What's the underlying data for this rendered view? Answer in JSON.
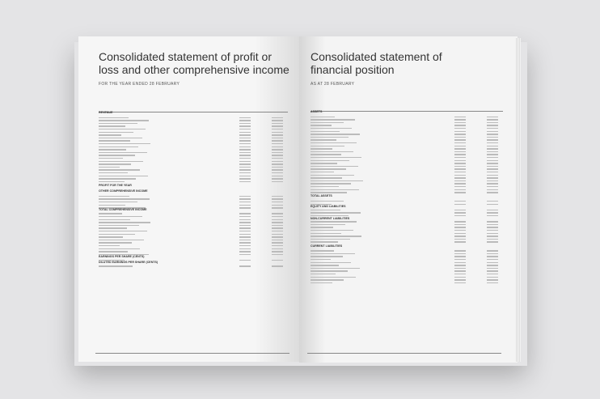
{
  "left_page": {
    "title": "Consolidated statement of profit or loss and other comprehensive income",
    "subtitle": "FOR THE YEAR ENDED 28 FEBRUARY",
    "rows": [
      {
        "label": "REVENUE",
        "top": 137
      },
      {
        "label": "PROFIT FOR THE YEAR",
        "top": 227
      },
      {
        "label": "OTHER COMPREHENSIVE INCOME",
        "top": 234
      },
      {
        "label": "TOTAL COMPREHENSIVE INCOME",
        "top": 257
      },
      {
        "label": "EARNINGS PER SHARE (CENTS)",
        "top": 315
      },
      {
        "label": "DILUTED EARNINGS PER SHARE (CENTS)",
        "top": 322
      }
    ]
  },
  "right_page": {
    "title": "Consolidated statement of financial position",
    "subtitle": "AS AT 28 FEBRUARY",
    "rows": [
      {
        "label": "ASSETS",
        "top": 136
      },
      {
        "label": "TOTAL ASSETS",
        "top": 240
      },
      {
        "label": "EQUITY AND LIABILITIES",
        "top": 253
      },
      {
        "label": "NON-CURRENT LIABILITIES",
        "top": 268
      },
      {
        "label": "CURRENT LIABILITIES",
        "top": 302
      }
    ]
  }
}
